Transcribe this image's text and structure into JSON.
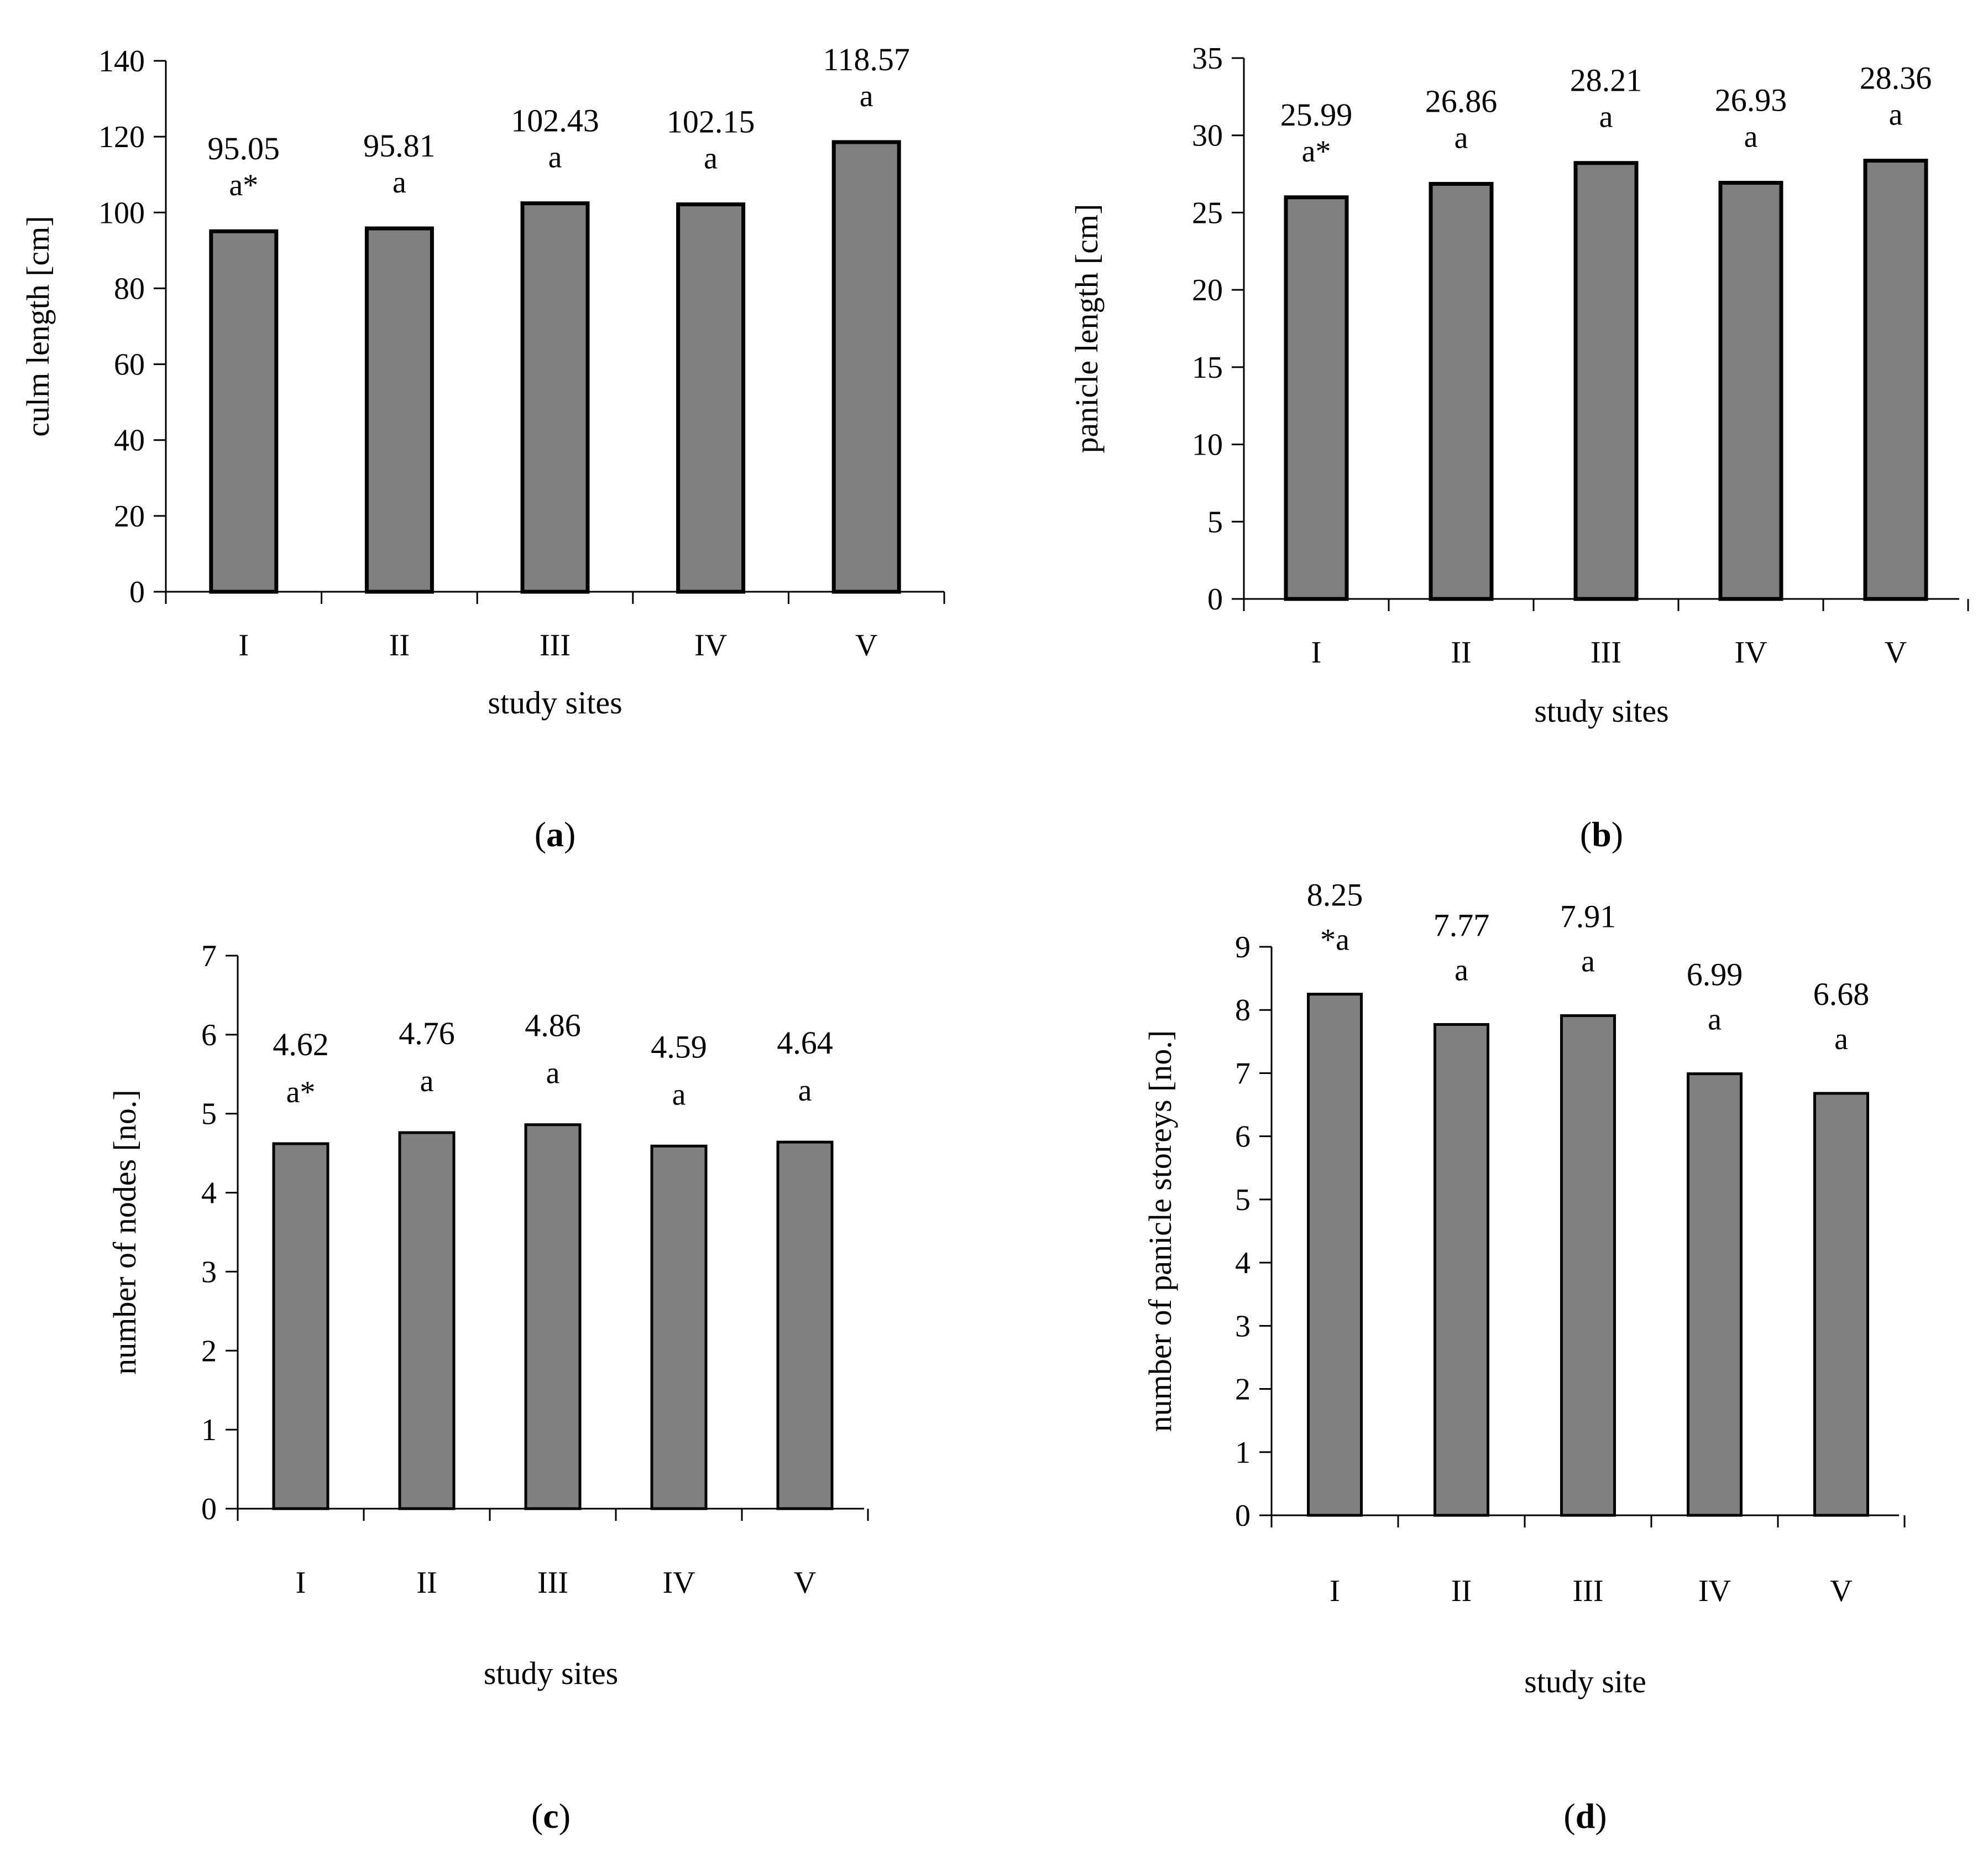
{
  "charts": [
    {
      "id": "a",
      "panel_label": "a",
      "ylabel": "culm length [cm]",
      "xlabel": "study sites",
      "yticks": [
        0,
        20,
        40,
        60,
        80,
        100,
        120,
        140
      ],
      "ylim": [
        0,
        140
      ],
      "categories": [
        "I",
        "II",
        "III",
        "IV",
        "V"
      ],
      "values": [
        95.05,
        95.81,
        102.43,
        102.15,
        118.57
      ],
      "value_labels": [
        "95.05",
        "95.81",
        "102.43",
        "102.15",
        "118.57"
      ],
      "sig_labels": [
        "a*",
        "a",
        "a",
        "a",
        "a"
      ]
    },
    {
      "id": "b",
      "panel_label": "b",
      "ylabel": "panicle length [cm]",
      "xlabel": "study sites",
      "yticks": [
        0,
        5,
        10,
        15,
        20,
        25,
        30,
        35
      ],
      "ylim": [
        0,
        35
      ],
      "categories": [
        "I",
        "II",
        "III",
        "IV",
        "V"
      ],
      "values": [
        25.99,
        26.86,
        28.21,
        26.93,
        28.36
      ],
      "value_labels": [
        "25.99",
        "26.86",
        "28.21",
        "26.93",
        "28.36"
      ],
      "sig_labels": [
        "a*",
        "a",
        "a",
        "a",
        "a"
      ]
    },
    {
      "id": "c",
      "panel_label": "c",
      "ylabel": "number of nodes [no.]",
      "xlabel": "study sites",
      "yticks": [
        0,
        1,
        2,
        3,
        4,
        5,
        6,
        7
      ],
      "ylim": [
        0,
        7
      ],
      "categories": [
        "I",
        "II",
        "III",
        "IV",
        "V"
      ],
      "values": [
        4.62,
        4.76,
        4.86,
        4.59,
        4.64
      ],
      "value_labels": [
        "4.62",
        "4.76",
        "4.86",
        "4.59",
        "4.64"
      ],
      "sig_labels": [
        "a*",
        "a",
        "a",
        "a",
        "a"
      ]
    },
    {
      "id": "d",
      "panel_label": "d",
      "ylabel": "number of panicle storeys [no.]",
      "xlabel": "study site",
      "yticks": [
        0,
        1,
        2,
        3,
        4,
        5,
        6,
        7,
        8,
        9
      ],
      "ylim": [
        0,
        9
      ],
      "categories": [
        "I",
        "II",
        "III",
        "IV",
        "V"
      ],
      "values": [
        8.25,
        7.77,
        7.91,
        6.99,
        6.68
      ],
      "value_labels": [
        "8.25",
        "7.77",
        "7.91",
        "6.99",
        "6.68"
      ],
      "sig_labels": [
        "*a",
        "a",
        "a",
        "a",
        "a"
      ]
    }
  ],
  "chart_data": [
    {
      "type": "bar",
      "title": "(a)",
      "categories": [
        "I",
        "II",
        "III",
        "IV",
        "V"
      ],
      "values": [
        95.05,
        95.81,
        102.43,
        102.15,
        118.57
      ],
      "xlabel": "study sites",
      "ylabel": "culm length [cm]",
      "ylim": [
        0,
        140
      ],
      "annotations": [
        "a*",
        "a",
        "a",
        "a",
        "a"
      ],
      "grid": false
    },
    {
      "type": "bar",
      "title": "(b)",
      "categories": [
        "I",
        "II",
        "III",
        "IV",
        "V"
      ],
      "values": [
        25.99,
        26.86,
        28.21,
        26.93,
        28.36
      ],
      "xlabel": "study sites",
      "ylabel": "panicle length [cm]",
      "ylim": [
        0,
        35
      ],
      "annotations": [
        "a*",
        "a",
        "a",
        "a",
        "a"
      ],
      "grid": false
    },
    {
      "type": "bar",
      "title": "(c)",
      "categories": [
        "I",
        "II",
        "III",
        "IV",
        "V"
      ],
      "values": [
        4.62,
        4.76,
        4.86,
        4.59,
        4.64
      ],
      "xlabel": "study sites",
      "ylabel": "number of nodes [no.]",
      "ylim": [
        0,
        7
      ],
      "annotations": [
        "a*",
        "a",
        "a",
        "a",
        "a"
      ],
      "grid": false
    },
    {
      "type": "bar",
      "title": "(d)",
      "categories": [
        "I",
        "II",
        "III",
        "IV",
        "V"
      ],
      "values": [
        8.25,
        7.77,
        7.91,
        6.99,
        6.68
      ],
      "xlabel": "study site",
      "ylabel": "number of panicle storeys [no.]",
      "ylim": [
        0,
        9
      ],
      "annotations": [
        "*a",
        "a",
        "a",
        "a",
        "a"
      ],
      "grid": false
    }
  ],
  "colors": {
    "bar_fill": "#808080",
    "bar_stroke": "#000000",
    "axis": "#000000"
  }
}
